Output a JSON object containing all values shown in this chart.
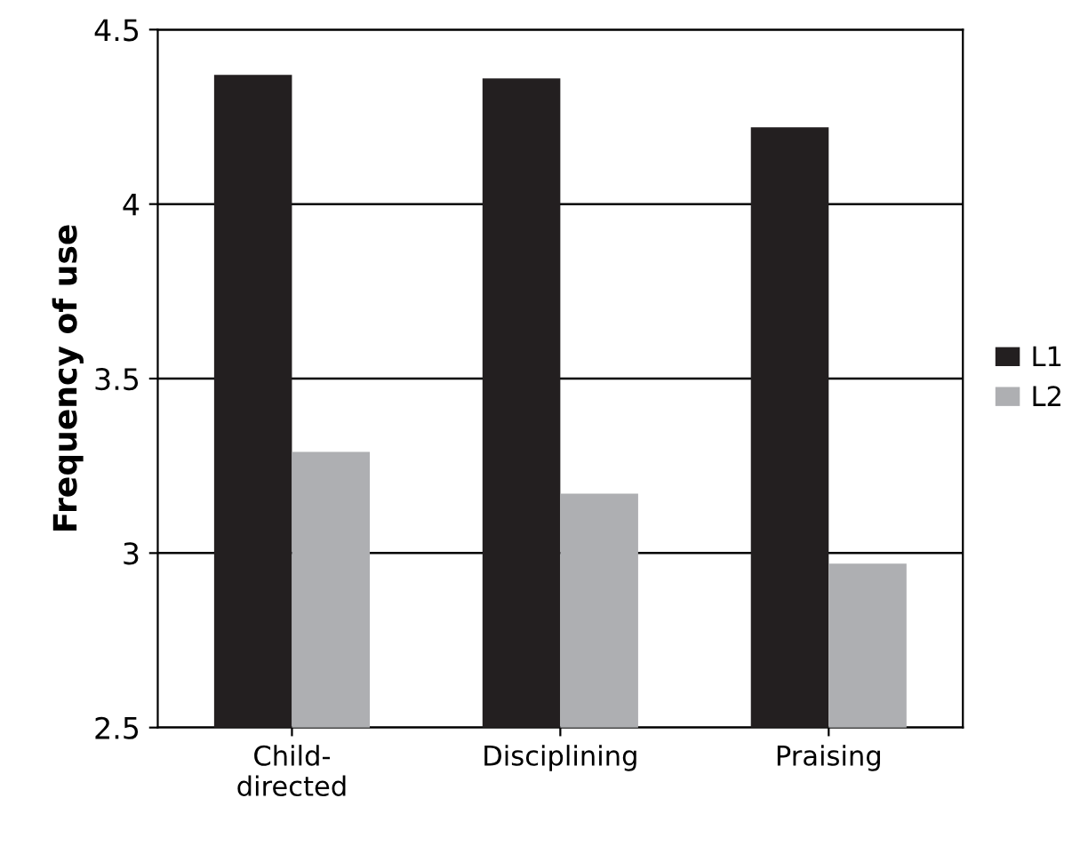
{
  "chart_data": {
    "type": "bar",
    "ylabel": "Frequency of use",
    "categories": [
      "Child-\ndirected",
      "Disciplining",
      "Praising"
    ],
    "series": [
      {
        "name": "L1",
        "color": "#231f20",
        "values": [
          4.37,
          4.36,
          4.22
        ]
      },
      {
        "name": "L2",
        "color": "#aeafb2",
        "values": [
          3.29,
          3.17,
          2.97
        ]
      }
    ],
    "ylim": [
      2.5,
      4.5
    ],
    "yticks": [
      2.5,
      3,
      3.5,
      4,
      4.5
    ],
    "grid": "y",
    "legend": "right"
  }
}
